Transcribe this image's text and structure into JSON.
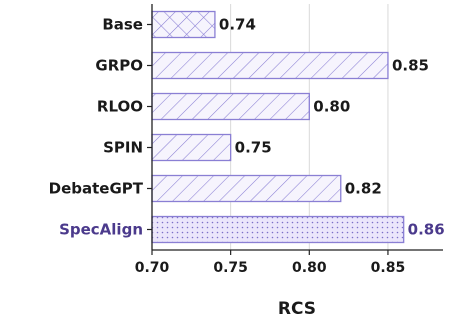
{
  "chart_data": {
    "type": "bar",
    "orientation": "horizontal",
    "categories": [
      "Base",
      "GRPO",
      "RLOO",
      "SPIN",
      "DebateGPT",
      "SpecAlign"
    ],
    "values": [
      0.74,
      0.85,
      0.8,
      0.75,
      0.82,
      0.86
    ],
    "value_labels": [
      "0.74",
      "0.85",
      "0.80",
      "0.75",
      "0.82",
      "0.86"
    ],
    "highlight_category": "SpecAlign",
    "patterns": [
      "crosshatch",
      "diagonal",
      "diagonal",
      "diagonal",
      "diagonal",
      "dots"
    ],
    "xlabel": "RCS",
    "ylabel": "",
    "xlim": [
      0.7,
      0.885
    ],
    "xticks": [
      0.7,
      0.75,
      0.8,
      0.85
    ],
    "xtick_labels": [
      "0.70",
      "0.75",
      "0.80",
      "0.85"
    ],
    "grid": "vertical",
    "colors": {
      "bar_edge": "#8a7fd4",
      "bar_fill": "#f6f4fd",
      "highlight_text": "#4b3a8c",
      "highlight_fill": "#ebe6fb",
      "grid": "#d9d9d9",
      "axis": "#222222"
    }
  }
}
